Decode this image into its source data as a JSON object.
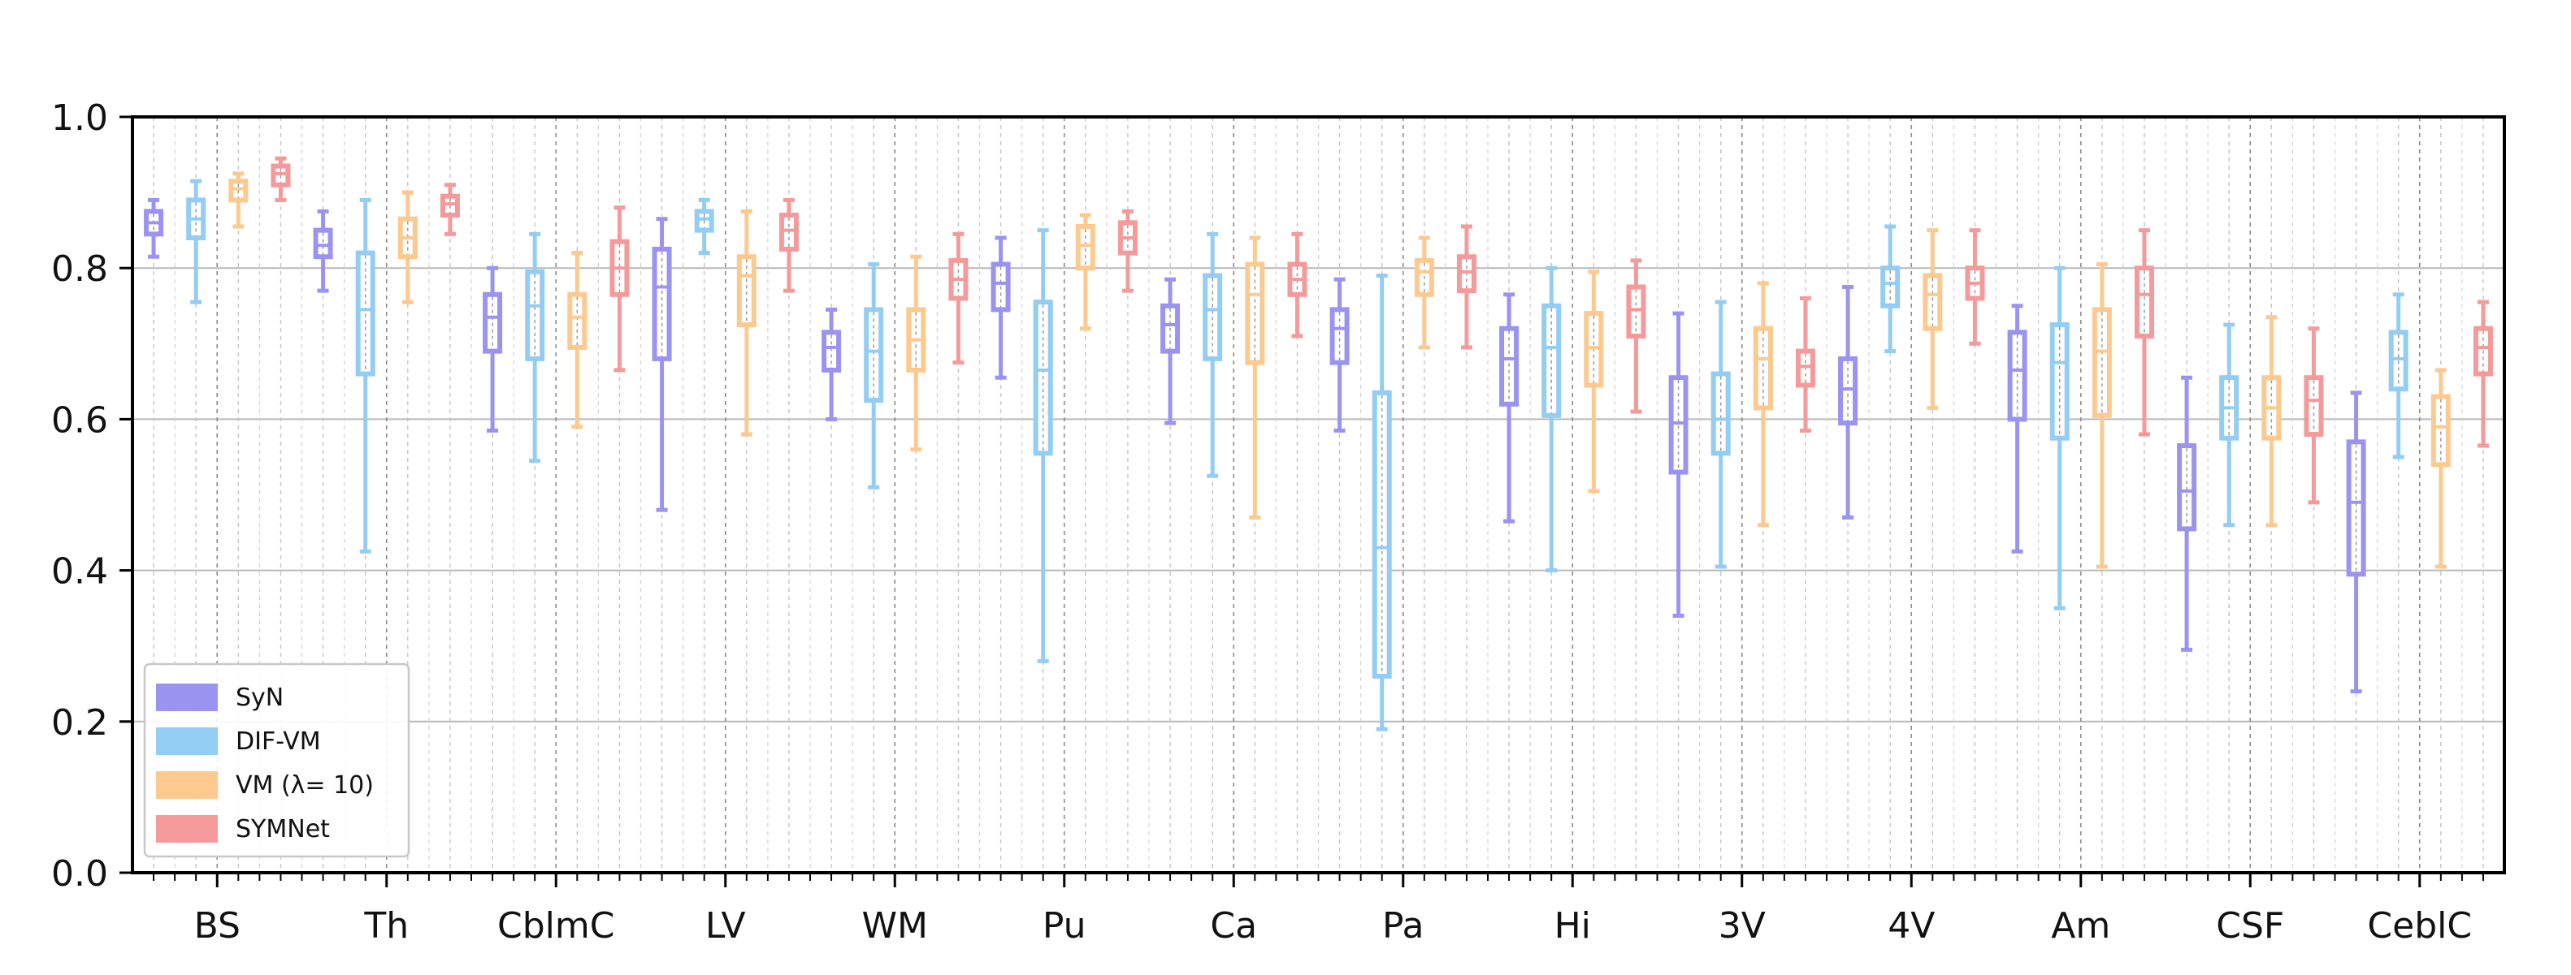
{
  "chart_data": {
    "type": "box",
    "categories": [
      "BS",
      "Th",
      "CblmC",
      "LV",
      "WM",
      "Pu",
      "Ca",
      "Pa",
      "Hi",
      "3V",
      "4V",
      "Am",
      "CSF",
      "CeblC"
    ],
    "ylim": [
      0.0,
      1.0
    ],
    "yticks": [
      "0.0",
      "0.2",
      "0.4",
      "0.6",
      "0.8",
      "1.0"
    ],
    "grid": true,
    "legend_position": "lower-left",
    "series": [
      {
        "name": "SyN",
        "color": "#9b93f2",
        "boxes": [
          {
            "min": 0.815,
            "q1": 0.845,
            "median": 0.86,
            "q3": 0.875,
            "max": 0.89
          },
          {
            "min": 0.77,
            "q1": 0.815,
            "median": 0.83,
            "q3": 0.85,
            "max": 0.875
          },
          {
            "min": 0.585,
            "q1": 0.69,
            "median": 0.735,
            "q3": 0.765,
            "max": 0.8
          },
          {
            "min": 0.48,
            "q1": 0.68,
            "median": 0.775,
            "q3": 0.825,
            "max": 0.865
          },
          {
            "min": 0.6,
            "q1": 0.665,
            "median": 0.695,
            "q3": 0.715,
            "max": 0.745
          },
          {
            "min": 0.655,
            "q1": 0.745,
            "median": 0.78,
            "q3": 0.805,
            "max": 0.84
          },
          {
            "min": 0.595,
            "q1": 0.69,
            "median": 0.725,
            "q3": 0.75,
            "max": 0.785
          },
          {
            "min": 0.585,
            "q1": 0.675,
            "median": 0.72,
            "q3": 0.745,
            "max": 0.785
          },
          {
            "min": 0.465,
            "q1": 0.62,
            "median": 0.68,
            "q3": 0.72,
            "max": 0.765
          },
          {
            "min": 0.34,
            "q1": 0.53,
            "median": 0.595,
            "q3": 0.655,
            "max": 0.74
          },
          {
            "min": 0.47,
            "q1": 0.595,
            "median": 0.64,
            "q3": 0.68,
            "max": 0.775
          },
          {
            "min": 0.425,
            "q1": 0.6,
            "median": 0.665,
            "q3": 0.715,
            "max": 0.75
          },
          {
            "min": 0.295,
            "q1": 0.455,
            "median": 0.505,
            "q3": 0.565,
            "max": 0.655
          },
          {
            "min": 0.24,
            "q1": 0.395,
            "median": 0.49,
            "q3": 0.57,
            "max": 0.635
          }
        ]
      },
      {
        "name": "DIF-VM",
        "color": "#93cdf3",
        "boxes": [
          {
            "min": 0.755,
            "q1": 0.84,
            "median": 0.865,
            "q3": 0.89,
            "max": 0.915
          },
          {
            "min": 0.425,
            "q1": 0.66,
            "median": 0.745,
            "q3": 0.82,
            "max": 0.89
          },
          {
            "min": 0.545,
            "q1": 0.68,
            "median": 0.75,
            "q3": 0.795,
            "max": 0.845
          },
          {
            "min": 0.82,
            "q1": 0.85,
            "median": 0.865,
            "q3": 0.875,
            "max": 0.89
          },
          {
            "min": 0.51,
            "q1": 0.625,
            "median": 0.69,
            "q3": 0.745,
            "max": 0.805
          },
          {
            "min": 0.28,
            "q1": 0.555,
            "median": 0.665,
            "q3": 0.755,
            "max": 0.85
          },
          {
            "min": 0.525,
            "q1": 0.68,
            "median": 0.745,
            "q3": 0.79,
            "max": 0.845
          },
          {
            "min": 0.19,
            "q1": 0.26,
            "median": 0.43,
            "q3": 0.635,
            "max": 0.79
          },
          {
            "min": 0.4,
            "q1": 0.605,
            "median": 0.695,
            "q3": 0.75,
            "max": 0.8
          },
          {
            "min": 0.405,
            "q1": 0.555,
            "median": 0.6,
            "q3": 0.66,
            "max": 0.755
          },
          {
            "min": 0.69,
            "q1": 0.75,
            "median": 0.78,
            "q3": 0.8,
            "max": 0.855
          },
          {
            "min": 0.35,
            "q1": 0.575,
            "median": 0.675,
            "q3": 0.725,
            "max": 0.8
          },
          {
            "min": 0.46,
            "q1": 0.575,
            "median": 0.615,
            "q3": 0.655,
            "max": 0.725
          },
          {
            "min": 0.55,
            "q1": 0.64,
            "median": 0.68,
            "q3": 0.715,
            "max": 0.765
          }
        ]
      },
      {
        "name": "VM (λ= 10)",
        "color": "#fcc98f",
        "boxes": [
          {
            "min": 0.855,
            "q1": 0.89,
            "median": 0.905,
            "q3": 0.915,
            "max": 0.925
          },
          {
            "min": 0.755,
            "q1": 0.815,
            "median": 0.84,
            "q3": 0.865,
            "max": 0.9
          },
          {
            "min": 0.59,
            "q1": 0.695,
            "median": 0.735,
            "q3": 0.765,
            "max": 0.82
          },
          {
            "min": 0.58,
            "q1": 0.725,
            "median": 0.79,
            "q3": 0.815,
            "max": 0.875
          },
          {
            "min": 0.56,
            "q1": 0.665,
            "median": 0.705,
            "q3": 0.745,
            "max": 0.815
          },
          {
            "min": 0.72,
            "q1": 0.8,
            "median": 0.83,
            "q3": 0.855,
            "max": 0.87
          },
          {
            "min": 0.47,
            "q1": 0.675,
            "median": 0.765,
            "q3": 0.805,
            "max": 0.84
          },
          {
            "min": 0.695,
            "q1": 0.765,
            "median": 0.795,
            "q3": 0.81,
            "max": 0.84
          },
          {
            "min": 0.505,
            "q1": 0.645,
            "median": 0.695,
            "q3": 0.74,
            "max": 0.795
          },
          {
            "min": 0.46,
            "q1": 0.615,
            "median": 0.68,
            "q3": 0.72,
            "max": 0.78
          },
          {
            "min": 0.615,
            "q1": 0.72,
            "median": 0.765,
            "q3": 0.79,
            "max": 0.85
          },
          {
            "min": 0.405,
            "q1": 0.605,
            "median": 0.69,
            "q3": 0.745,
            "max": 0.805
          },
          {
            "min": 0.46,
            "q1": 0.575,
            "median": 0.615,
            "q3": 0.655,
            "max": 0.735
          },
          {
            "min": 0.405,
            "q1": 0.54,
            "median": 0.59,
            "q3": 0.63,
            "max": 0.665
          }
        ]
      },
      {
        "name": "SYMNet",
        "color": "#f59a9a",
        "boxes": [
          {
            "min": 0.89,
            "q1": 0.91,
            "median": 0.925,
            "q3": 0.935,
            "max": 0.945
          },
          {
            "min": 0.845,
            "q1": 0.87,
            "median": 0.885,
            "q3": 0.895,
            "max": 0.91
          },
          {
            "min": 0.665,
            "q1": 0.765,
            "median": 0.8,
            "q3": 0.835,
            "max": 0.88
          },
          {
            "min": 0.77,
            "q1": 0.825,
            "median": 0.85,
            "q3": 0.87,
            "max": 0.89
          },
          {
            "min": 0.675,
            "q1": 0.76,
            "median": 0.785,
            "q3": 0.81,
            "max": 0.845
          },
          {
            "min": 0.77,
            "q1": 0.82,
            "median": 0.84,
            "q3": 0.86,
            "max": 0.875
          },
          {
            "min": 0.71,
            "q1": 0.765,
            "median": 0.785,
            "q3": 0.805,
            "max": 0.845
          },
          {
            "min": 0.695,
            "q1": 0.77,
            "median": 0.795,
            "q3": 0.815,
            "max": 0.855
          },
          {
            "min": 0.61,
            "q1": 0.71,
            "median": 0.745,
            "q3": 0.775,
            "max": 0.81
          },
          {
            "min": 0.585,
            "q1": 0.645,
            "median": 0.67,
            "q3": 0.69,
            "max": 0.76
          },
          {
            "min": 0.7,
            "q1": 0.76,
            "median": 0.78,
            "q3": 0.8,
            "max": 0.85
          },
          {
            "min": 0.58,
            "q1": 0.71,
            "median": 0.765,
            "q3": 0.8,
            "max": 0.85
          },
          {
            "min": 0.49,
            "q1": 0.58,
            "median": 0.625,
            "q3": 0.655,
            "max": 0.72
          },
          {
            "min": 0.565,
            "q1": 0.66,
            "median": 0.695,
            "q3": 0.72,
            "max": 0.755
          }
        ]
      }
    ]
  }
}
